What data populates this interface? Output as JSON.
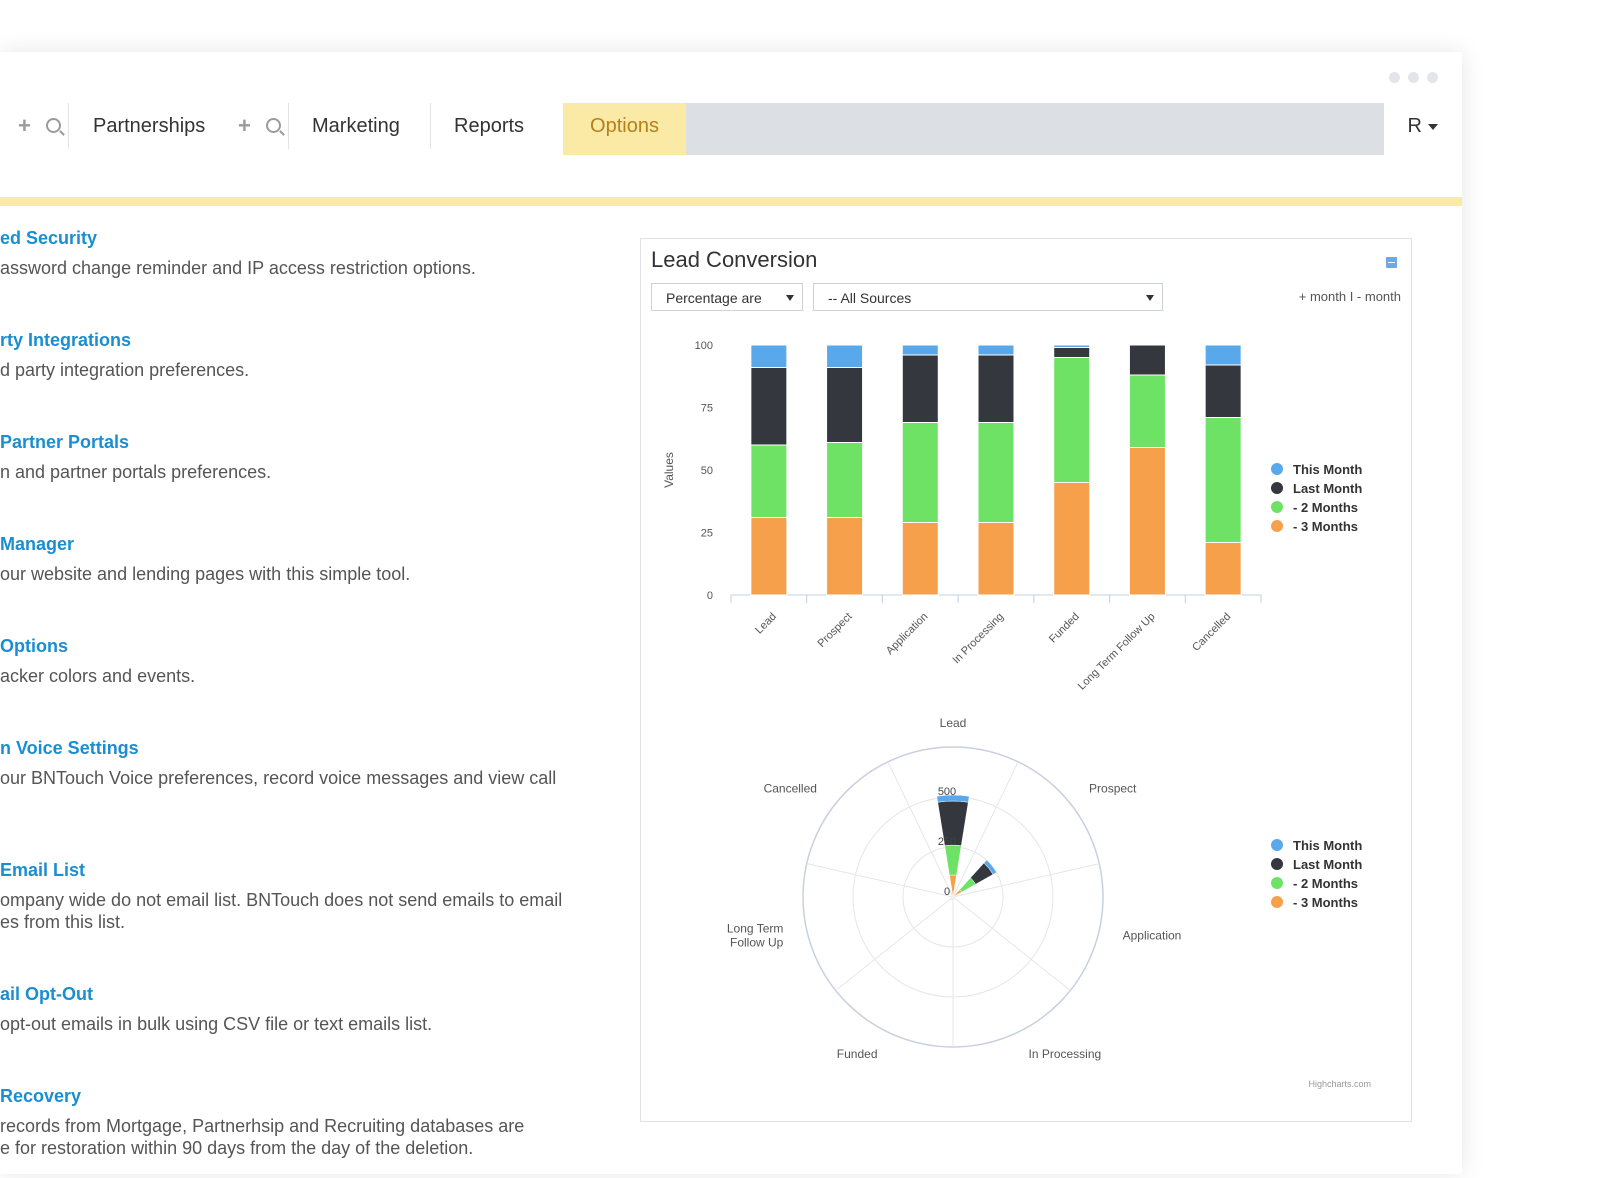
{
  "tabs": [
    {
      "label": "Partnerships"
    },
    {
      "label": "Marketing"
    },
    {
      "label": "Reports"
    },
    {
      "label": "Options"
    }
  ],
  "user_menu": {
    "label": "R"
  },
  "settings": [
    {
      "title": "ed Security",
      "desc": [
        "assword change reminder and IP access restriction options."
      ]
    },
    {
      "title": "rty Integrations",
      "desc": [
        "d party integration preferences."
      ]
    },
    {
      "title": "Partner Portals",
      "desc": [
        "n and partner portals preferences."
      ]
    },
    {
      "title": "Manager",
      "desc": [
        "our website and lending pages with this simple tool."
      ]
    },
    {
      "title": "Options",
      "desc": [
        "acker colors and events."
      ]
    },
    {
      "title": "n Voice Settings",
      "desc": [
        "our BNTouch Voice preferences, record voice messages and view call"
      ]
    },
    {
      "title": "Email List",
      "desc": [
        "ompany wide do not email list. BNTouch does not send emails to email",
        "es from this list."
      ]
    },
    {
      "title": "ail Opt-Out",
      "desc": [
        "opt-out emails in bulk using CSV file or text emails list."
      ]
    },
    {
      "title": "Recovery",
      "desc": [
        "records from Mortgage, Partnerhsip and Recruiting databases are",
        "e for restoration within 90 days from the day of the deletion."
      ]
    }
  ],
  "panel": {
    "title": "Lead Conversion",
    "mode_select": "Percentage are",
    "source_select": "-- All Sources",
    "month_toggle": "+ month  I  - month",
    "credits": "Highcharts.com"
  },
  "colors": {
    "this_month": "#5aa8ec",
    "last_month": "#34373d",
    "two_months": "#6ee265",
    "three_months": "#f7a04b",
    "link": "#1a8ed1",
    "active_tab": "#fbe9a6"
  },
  "chart_data": [
    {
      "type": "bar",
      "stacked": true,
      "categories": [
        "Lead",
        "Prospect",
        "Application",
        "In Processing",
        "Funded",
        "Long Term Follow Up",
        "Cancelled"
      ],
      "ylabel": "Values",
      "ylim": [
        0,
        100
      ],
      "yticks": [
        0,
        25,
        50,
        75,
        100
      ],
      "series": [
        {
          "name": "- 3 Months",
          "values": [
            31,
            31,
            29,
            29,
            45,
            59,
            21
          ]
        },
        {
          "name": "- 2 Months",
          "values": [
            29,
            30,
            40,
            40,
            50,
            29,
            50
          ]
        },
        {
          "name": "Last Month",
          "values": [
            31,
            30,
            27,
            27,
            4,
            12,
            21
          ]
        },
        {
          "name": "This Month",
          "values": [
            9,
            9,
            4,
            4,
            1,
            0,
            8
          ]
        }
      ],
      "legend": {
        "placement": "right",
        "items": [
          "This Month",
          "Last Month",
          "- 2 Months",
          "- 3 Months"
        ]
      }
    },
    {
      "type": "polar-stacked-column",
      "categories": [
        "Lead",
        "Prospect",
        "Application",
        "In Processing",
        "Funded",
        "Long Term\nFollow Up",
        "Cancelled"
      ],
      "radial_ticks": [
        "0",
        "250",
        "500"
      ],
      "rmax": 750,
      "series": [
        {
          "name": "- 3 Months",
          "values": [
            110,
            50,
            0,
            0,
            0,
            0,
            0
          ]
        },
        {
          "name": "- 2 Months",
          "values": [
            150,
            80,
            0,
            0,
            0,
            0,
            0
          ]
        },
        {
          "name": "Last Month",
          "values": [
            220,
            100,
            0,
            0,
            10,
            0,
            0
          ]
        },
        {
          "name": "This Month",
          "values": [
            30,
            20,
            0,
            0,
            5,
            0,
            0
          ]
        }
      ],
      "legend": {
        "placement": "right",
        "items": [
          "This Month",
          "Last Month",
          "- 2 Months",
          "- 3 Months"
        ]
      }
    }
  ]
}
